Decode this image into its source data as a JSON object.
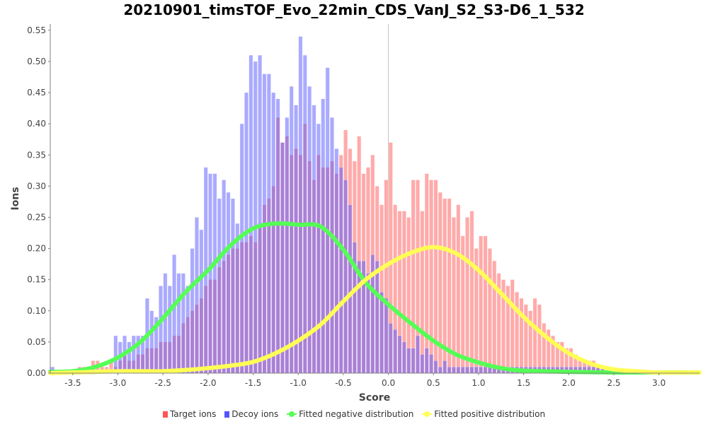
{
  "chart_data": {
    "type": "bar",
    "title": "20210901_timsTOF_Evo_22min_CDS_VanJ_S2_S3-D6_1_532",
    "xlabel": "Score",
    "ylabel": "Ions",
    "xlim": [
      -3.75,
      3.45
    ],
    "ylim": [
      0.0,
      0.56
    ],
    "bin_width": 0.05,
    "x_ticks": [
      "-3.5",
      "-3.0",
      "-2.5",
      "-2.0",
      "-1.5",
      "-1.0",
      "-0.5",
      "0.0",
      "0.5",
      "1.0",
      "1.5",
      "2.0",
      "2.5",
      "3.0"
    ],
    "x_tick_values": [
      -3.5,
      -3.0,
      -2.5,
      -2.0,
      -1.5,
      -1.0,
      -0.5,
      0.0,
      0.5,
      1.0,
      1.5,
      2.0,
      2.5,
      3.0
    ],
    "y_ticks": [
      "0.00",
      "0.05",
      "0.10",
      "0.15",
      "0.20",
      "0.25",
      "0.30",
      "0.35",
      "0.40",
      "0.45",
      "0.50",
      "0.55"
    ],
    "y_tick_values": [
      0.0,
      0.05,
      0.1,
      0.15,
      0.2,
      0.25,
      0.3,
      0.35,
      0.4,
      0.45,
      0.5,
      0.55
    ],
    "reference_line_x": 0.0,
    "legend_position": "bottom",
    "series": [
      {
        "name": "Target ions",
        "kind": "bar",
        "color": "#ff5555",
        "x": [
          -3.45,
          -3.4,
          -3.35,
          -3.3,
          -3.25,
          -3.2,
          -3.15,
          -3.1,
          -3.05,
          -3.0,
          -2.95,
          -2.9,
          -2.85,
          -2.8,
          -2.75,
          -2.7,
          -2.65,
          -2.6,
          -2.55,
          -2.5,
          -2.45,
          -2.4,
          -2.35,
          -2.3,
          -2.25,
          -2.2,
          -2.15,
          -2.1,
          -2.05,
          -2.0,
          -1.95,
          -1.9,
          -1.85,
          -1.8,
          -1.75,
          -1.7,
          -1.65,
          -1.6,
          -1.55,
          -1.5,
          -1.45,
          -1.4,
          -1.35,
          -1.3,
          -1.25,
          -1.2,
          -1.15,
          -1.1,
          -1.05,
          -1.0,
          -0.95,
          -0.9,
          -0.85,
          -0.8,
          -0.75,
          -0.7,
          -0.65,
          -0.6,
          -0.55,
          -0.5,
          -0.45,
          -0.4,
          -0.35,
          -0.3,
          -0.25,
          -0.2,
          -0.15,
          -0.1,
          -0.05,
          0.0,
          0.05,
          0.1,
          0.15,
          0.2,
          0.25,
          0.3,
          0.35,
          0.4,
          0.45,
          0.5,
          0.55,
          0.6,
          0.65,
          0.7,
          0.75,
          0.8,
          0.85,
          0.9,
          0.95,
          1.0,
          1.05,
          1.1,
          1.15,
          1.2,
          1.25,
          1.3,
          1.35,
          1.4,
          1.45,
          1.5,
          1.55,
          1.6,
          1.65,
          1.7,
          1.75,
          1.8,
          1.85,
          1.9,
          1.95,
          2.0,
          2.05,
          2.1,
          2.15,
          2.2,
          2.25,
          2.3,
          2.35,
          2.4
        ],
        "values": [
          0.01,
          0.01,
          0.01,
          0.02,
          0.02,
          0.01,
          0.01,
          0.02,
          0.01,
          0.02,
          0.03,
          0.02,
          0.02,
          0.03,
          0.03,
          0.04,
          0.04,
          0.04,
          0.05,
          0.05,
          0.05,
          0.06,
          0.06,
          0.08,
          0.09,
          0.1,
          0.11,
          0.12,
          0.14,
          0.15,
          0.15,
          0.17,
          0.18,
          0.19,
          0.2,
          0.2,
          0.21,
          0.21,
          0.22,
          0.21,
          0.24,
          0.27,
          0.28,
          0.3,
          0.41,
          0.37,
          0.38,
          0.35,
          0.36,
          0.35,
          0.4,
          0.34,
          0.31,
          0.35,
          0.33,
          0.33,
          0.34,
          0.32,
          0.35,
          0.39,
          0.36,
          0.34,
          0.38,
          0.32,
          0.33,
          0.35,
          0.3,
          0.27,
          0.31,
          0.37,
          0.27,
          0.26,
          0.26,
          0.25,
          0.31,
          0.31,
          0.26,
          0.32,
          0.31,
          0.31,
          0.29,
          0.28,
          0.28,
          0.25,
          0.27,
          0.22,
          0.25,
          0.26,
          0.2,
          0.22,
          0.22,
          0.2,
          0.18,
          0.16,
          0.15,
          0.14,
          0.15,
          0.13,
          0.12,
          0.11,
          0.1,
          0.12,
          0.11,
          0.08,
          0.07,
          0.06,
          0.05,
          0.05,
          0.04,
          0.04,
          0.03,
          0.02,
          0.02,
          0.02,
          0.02,
          0.01,
          0.01,
          0.01
        ]
      },
      {
        "name": "Decoy ions",
        "kind": "bar",
        "color": "#5555ff",
        "x": [
          -3.75,
          -3.05,
          -3.0,
          -2.95,
          -2.9,
          -2.85,
          -2.8,
          -2.75,
          -2.7,
          -2.65,
          -2.6,
          -2.55,
          -2.5,
          -2.45,
          -2.4,
          -2.35,
          -2.3,
          -2.25,
          -2.2,
          -2.15,
          -2.1,
          -2.05,
          -2.0,
          -1.95,
          -1.9,
          -1.85,
          -1.8,
          -1.75,
          -1.7,
          -1.65,
          -1.6,
          -1.55,
          -1.5,
          -1.45,
          -1.4,
          -1.35,
          -1.3,
          -1.25,
          -1.2,
          -1.15,
          -1.1,
          -1.05,
          -1.0,
          -0.95,
          -0.9,
          -0.85,
          -0.8,
          -0.75,
          -0.7,
          -0.65,
          -0.6,
          -0.55,
          -0.5,
          -0.45,
          -0.4,
          -0.35,
          -0.3,
          -0.25,
          -0.2,
          -0.15,
          -0.1,
          -0.05,
          0.0,
          0.05,
          0.1,
          0.15,
          0.2,
          0.25,
          0.3,
          0.35,
          0.4,
          0.45,
          0.5,
          0.55,
          0.6,
          0.65,
          0.7,
          0.75,
          0.8,
          0.85,
          0.9,
          0.95,
          1.0,
          1.05,
          1.1,
          1.15,
          1.2,
          1.25,
          1.3,
          1.35,
          1.4,
          1.45,
          1.5,
          1.55,
          1.6,
          1.65,
          1.7,
          1.75,
          1.8,
          1.85,
          1.9,
          1.95,
          2.0,
          2.05,
          2.1,
          2.15,
          2.2,
          2.25,
          2.3,
          2.35
        ],
        "values": [
          0.01,
          0.06,
          0.05,
          0.06,
          0.05,
          0.06,
          0.06,
          0.06,
          0.12,
          0.1,
          0.09,
          0.14,
          0.16,
          0.14,
          0.19,
          0.16,
          0.16,
          0.14,
          0.2,
          0.25,
          0.23,
          0.33,
          0.32,
          0.32,
          0.28,
          0.31,
          0.29,
          0.28,
          0.24,
          0.4,
          0.45,
          0.51,
          0.5,
          0.51,
          0.48,
          0.48,
          0.45,
          0.44,
          0.37,
          0.41,
          0.46,
          0.43,
          0.54,
          0.51,
          0.46,
          0.43,
          0.4,
          0.44,
          0.49,
          0.41,
          0.36,
          0.33,
          0.31,
          0.27,
          0.21,
          0.18,
          0.18,
          0.16,
          0.19,
          0.18,
          0.13,
          0.12,
          0.08,
          0.07,
          0.06,
          0.05,
          0.04,
          0.04,
          0.06,
          0.03,
          0.04,
          0.03,
          0.02,
          0.01,
          0.02,
          0.01,
          0.01,
          0.01,
          0.01,
          0.01,
          0.01,
          0.01,
          0.01,
          0.01,
          0.01,
          0.01,
          0.01,
          0.01,
          0.01,
          0.01,
          0.01,
          0.01,
          0.01,
          0.01,
          0.01,
          0.01,
          0.01,
          0.01,
          0.01,
          0.01,
          0.01,
          0.01,
          0.01,
          0.01,
          0.01,
          0.01,
          0.01,
          0.01,
          0.01,
          0.01
        ]
      },
      {
        "name": "Fitted negative distribution",
        "kind": "line",
        "color": "#55ff55",
        "x": [
          -3.75,
          -3.5,
          -3.25,
          -3.0,
          -2.75,
          -2.5,
          -2.25,
          -2.0,
          -1.75,
          -1.5,
          -1.25,
          -1.0,
          -0.75,
          -0.5,
          -0.25,
          0.0,
          0.25,
          0.5,
          0.75,
          1.0,
          1.25,
          1.5,
          2.0,
          2.5,
          3.0,
          3.45
        ],
        "values": [
          0.002,
          0.003,
          0.01,
          0.025,
          0.05,
          0.088,
          0.13,
          0.165,
          0.205,
          0.232,
          0.24,
          0.238,
          0.235,
          0.198,
          0.145,
          0.11,
          0.08,
          0.052,
          0.03,
          0.017,
          0.008,
          0.004,
          0.002,
          0.001,
          0.001,
          0.001
        ]
      },
      {
        "name": "Fitted positive distribution",
        "kind": "line",
        "color": "#ffff55",
        "x": [
          -3.75,
          -3.25,
          -3.0,
          -2.75,
          -2.5,
          -2.25,
          -2.0,
          -1.75,
          -1.5,
          -1.25,
          -1.0,
          -0.75,
          -0.5,
          -0.25,
          0.0,
          0.25,
          0.5,
          0.75,
          1.0,
          1.25,
          1.5,
          1.75,
          2.0,
          2.25,
          2.5,
          2.75,
          3.0,
          3.45
        ],
        "values": [
          0.0,
          0.002,
          0.003,
          0.003,
          0.003,
          0.005,
          0.008,
          0.012,
          0.018,
          0.032,
          0.052,
          0.078,
          0.115,
          0.15,
          0.175,
          0.193,
          0.202,
          0.192,
          0.165,
          0.128,
          0.09,
          0.058,
          0.032,
          0.015,
          0.006,
          0.003,
          0.001,
          0.001
        ]
      }
    ]
  }
}
